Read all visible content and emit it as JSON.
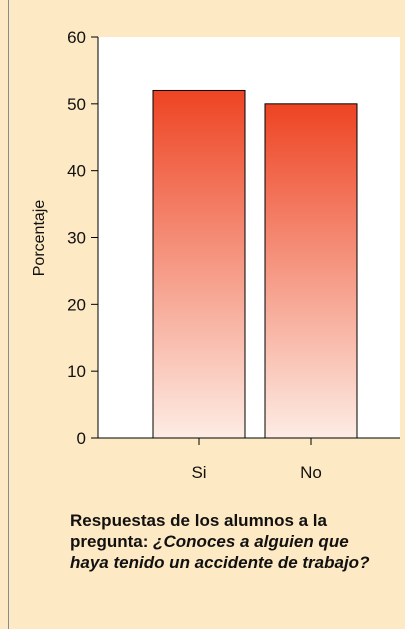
{
  "chart_data": {
    "type": "bar",
    "categories": [
      "Si",
      "No"
    ],
    "values": [
      52,
      50
    ],
    "ylabel": "Porcentaje",
    "xlabel": "",
    "ylim": [
      0,
      60
    ],
    "yticks": [
      0,
      10,
      20,
      30,
      40,
      50,
      60
    ],
    "grid": false,
    "bar_gradient": {
      "top": "#ee4423",
      "bottom": "#fdece4"
    }
  },
  "caption": {
    "lead": "Respuestas de los alumnos a la pregunta:",
    "question": "¿Conoces a alguien que haya tenido un accidente de trabajo?"
  },
  "colors": {
    "background": "#fde9c3",
    "plot": "#ffffff"
  }
}
